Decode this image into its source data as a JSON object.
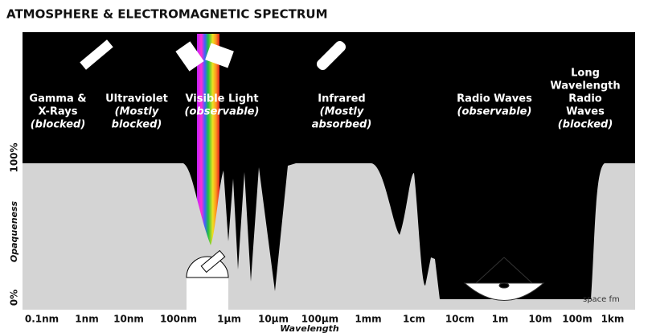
{
  "title": "ATMOSPHERE & ELECTROMAGNETIC SPECTRUM",
  "bands": [
    {
      "name": [
        "Gamma &",
        "X-Rays"
      ],
      "note": [
        "(blocked)"
      ]
    },
    {
      "name": [
        "Ultraviolet"
      ],
      "note": [
        "(Mostly",
        "blocked)"
      ]
    },
    {
      "name": [
        "Visible Light"
      ],
      "note": [
        "(observable)"
      ]
    },
    {
      "name": [
        "Infrared"
      ],
      "note": [
        "(Mostly",
        "absorbed)"
      ]
    },
    {
      "name": [
        "Radio Waves"
      ],
      "note": [
        "(observable)"
      ]
    },
    {
      "name": [
        "Long",
        "Wavelength",
        "Radio",
        "Waves"
      ],
      "note": [
        "(blocked)"
      ]
    }
  ],
  "x_ticks": [
    "0.1nm",
    "1nm",
    "10nm",
    "100nm",
    "1μm",
    "10μm",
    "100μm",
    "1mm",
    "1cm",
    "10cm",
    "1m",
    "10m",
    "100m",
    "1km"
  ],
  "x_label": "Wavelength",
  "y_label": "Opaqueness",
  "y_ticks": [
    "100%",
    "0%"
  ],
  "watermark": "space fm"
}
